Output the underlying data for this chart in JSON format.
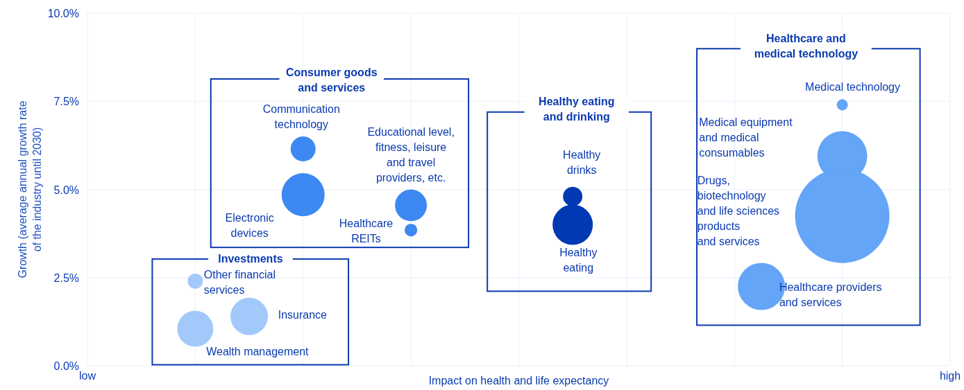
{
  "chart_data": {
    "type": "bubble",
    "xlabel": "Impact on health and life expectancy",
    "ylabel": "Growth (average annual growth rate\nof the industry until 2030)",
    "categories": [
      "low",
      null,
      null,
      null,
      null,
      null,
      null,
      null,
      null,
      null,
      null,
      null,
      null,
      null,
      null,
      null,
      null,
      null,
      null,
      null,
      null,
      null,
      null,
      null,
      null,
      null,
      null,
      null,
      null,
      null,
      null,
      null,
      "high"
    ],
    "ylim": [
      0,
      10
    ],
    "yticks": [
      {
        "value": 0,
        "label": "0.0%"
      },
      {
        "value": 2.5,
        "label": "2.5%"
      },
      {
        "value": 5,
        "label": "5.0%"
      },
      {
        "value": 7.5,
        "label": "7.5%"
      },
      {
        "value": 10,
        "label": "10.0%"
      }
    ],
    "grid": true,
    "series": [
      {
        "color": "#a3c9fb",
        "values": [
          null,
          null,
          null,
          null,
          2.4,
          null,
          1.4,
          null,
          null,
          null,
          null,
          null,
          null,
          null,
          null,
          null,
          null,
          null,
          null,
          null,
          null,
          null,
          null,
          null,
          null,
          null,
          null,
          null,
          null,
          null,
          null,
          null,
          null
        ],
        "sizes": [
          null,
          null,
          null,
          null,
          0.026,
          null,
          0.158,
          null,
          null,
          null,
          null,
          null,
          null,
          null,
          null,
          null,
          null,
          null,
          null,
          null,
          null,
          null,
          null,
          null,
          null,
          null,
          null,
          null,
          null,
          null,
          null,
          null,
          null
        ]
      },
      {
        "color": "#a3c9fb",
        "values": [
          null,
          null,
          null,
          null,
          1.05,
          null,
          null,
          null,
          null,
          null,
          null,
          null,
          null,
          null,
          null,
          null,
          null,
          null,
          null,
          null,
          null,
          null,
          null,
          null,
          null,
          null,
          null,
          null,
          null,
          null,
          null,
          null,
          null
        ],
        "sizes": [
          null,
          null,
          null,
          null,
          0.146,
          null,
          null,
          null,
          null,
          null,
          null,
          null,
          null,
          null,
          null,
          null,
          null,
          null,
          null,
          null,
          null,
          null,
          null,
          null,
          null,
          null,
          null,
          null,
          null,
          null,
          null,
          null,
          null
        ]
      },
      {
        "color": "#3d88f2",
        "values": [
          null,
          null,
          null,
          null,
          null,
          null,
          null,
          null,
          6.15,
          null,
          null,
          null,
          4.55,
          null,
          null,
          null,
          null,
          null,
          null,
          null,
          null,
          null,
          null,
          null,
          null,
          null,
          null,
          null,
          null,
          null,
          null,
          null,
          null
        ],
        "sizes": [
          null,
          null,
          null,
          null,
          null,
          null,
          null,
          null,
          0.07,
          null,
          null,
          null,
          0.114,
          null,
          null,
          null,
          null,
          null,
          null,
          null,
          null,
          null,
          null,
          null,
          null,
          null,
          null,
          null,
          null,
          null,
          null,
          null,
          null
        ]
      },
      {
        "color": "#3d88f2",
        "values": [
          null,
          null,
          null,
          null,
          null,
          null,
          null,
          null,
          4.85,
          null,
          null,
          null,
          3.85,
          null,
          null,
          null,
          null,
          null,
          null,
          null,
          null,
          null,
          null,
          null,
          null,
          null,
          null,
          null,
          null,
          null,
          null,
          null,
          null
        ],
        "sizes": [
          null,
          null,
          null,
          null,
          null,
          null,
          null,
          null,
          0.208,
          null,
          null,
          null,
          0.018,
          null,
          null,
          null,
          null,
          null,
          null,
          null,
          null,
          null,
          null,
          null,
          null,
          null,
          null,
          null,
          null,
          null,
          null,
          null,
          null
        ]
      },
      {
        "color": "#0039b3",
        "values": [
          null,
          null,
          null,
          null,
          null,
          null,
          null,
          null,
          null,
          null,
          null,
          null,
          null,
          null,
          null,
          null,
          null,
          null,
          4.8,
          null,
          null,
          null,
          null,
          null,
          null,
          null,
          null,
          null,
          null,
          null,
          null,
          null,
          null
        ],
        "sizes": [
          null,
          null,
          null,
          null,
          null,
          null,
          null,
          null,
          null,
          null,
          null,
          null,
          null,
          null,
          null,
          null,
          null,
          null,
          0.042,
          null,
          null,
          null,
          null,
          null,
          null,
          null,
          null,
          null,
          null,
          null,
          null,
          null,
          null
        ]
      },
      {
        "color": "#0039b3",
        "values": [
          null,
          null,
          null,
          null,
          null,
          null,
          null,
          null,
          null,
          null,
          null,
          null,
          null,
          null,
          null,
          null,
          null,
          null,
          4.0,
          null,
          null,
          null,
          null,
          null,
          null,
          null,
          null,
          null,
          null,
          null,
          null,
          null,
          null
        ],
        "sizes": [
          null,
          null,
          null,
          null,
          null,
          null,
          null,
          null,
          null,
          null,
          null,
          null,
          null,
          null,
          null,
          null,
          null,
          null,
          0.182,
          null,
          null,
          null,
          null,
          null,
          null,
          null,
          null,
          null,
          null,
          null,
          null,
          null,
          null
        ]
      },
      {
        "color": "#64a5f7",
        "values": [
          null,
          null,
          null,
          null,
          null,
          null,
          null,
          null,
          null,
          null,
          null,
          null,
          null,
          null,
          null,
          null,
          null,
          null,
          null,
          null,
          null,
          null,
          null,
          null,
          null,
          2.25,
          null,
          null,
          7.4,
          null,
          null,
          null,
          null
        ],
        "sizes": [
          null,
          null,
          null,
          null,
          null,
          null,
          null,
          null,
          null,
          null,
          null,
          null,
          null,
          null,
          null,
          null,
          null,
          null,
          null,
          null,
          null,
          null,
          null,
          null,
          null,
          0.25,
          null,
          null,
          0.014,
          null,
          null,
          null,
          null
        ]
      },
      {
        "color": "#64a5f7",
        "values": [
          null,
          null,
          null,
          null,
          null,
          null,
          null,
          null,
          null,
          null,
          null,
          null,
          null,
          null,
          null,
          null,
          null,
          null,
          null,
          null,
          null,
          null,
          null,
          null,
          null,
          null,
          null,
          null,
          5.95,
          null,
          null,
          null,
          null
        ],
        "sizes": [
          null,
          null,
          null,
          null,
          null,
          null,
          null,
          null,
          null,
          null,
          null,
          null,
          null,
          null,
          null,
          null,
          null,
          null,
          null,
          null,
          null,
          null,
          null,
          null,
          null,
          null,
          null,
          null,
          0.28,
          null,
          null,
          null,
          null
        ]
      },
      {
        "color": "#64a5f7",
        "values": [
          null,
          null,
          null,
          null,
          null,
          null,
          null,
          null,
          null,
          null,
          null,
          null,
          null,
          null,
          null,
          null,
          null,
          null,
          null,
          null,
          null,
          null,
          null,
          null,
          null,
          null,
          null,
          null,
          4.25,
          null,
          null,
          null,
          null
        ],
        "sizes": [
          null,
          null,
          null,
          null,
          null,
          null,
          null,
          null,
          null,
          null,
          null,
          null,
          null,
          null,
          null,
          null,
          null,
          null,
          null,
          null,
          null,
          null,
          null,
          null,
          null,
          null,
          null,
          null,
          1,
          null,
          null,
          null,
          null
        ]
      }
    ],
    "annotations": [
      "Healthcare and\nmedical technology",
      "Consumer goods\nand services",
      "Healthy eating\nand drinking",
      "Investments",
      "Other financial\nservices",
      "Wealth management",
      "Insurance",
      "Communication\ntechnology",
      "Electronic\ndevices",
      "Educational level,\nfitness, leisure\nand travel\nproviders, etc.",
      "Healthcare\nREITs",
      "Healthy\ndrinks",
      "Healthy\neating",
      "Medical technology",
      "Medical equipment\nand medical\nconsumables",
      "Drugs,\nbiotechnology\nand life sciences\nproducts\nand services",
      "Healthcare providers\nand services"
    ]
  }
}
